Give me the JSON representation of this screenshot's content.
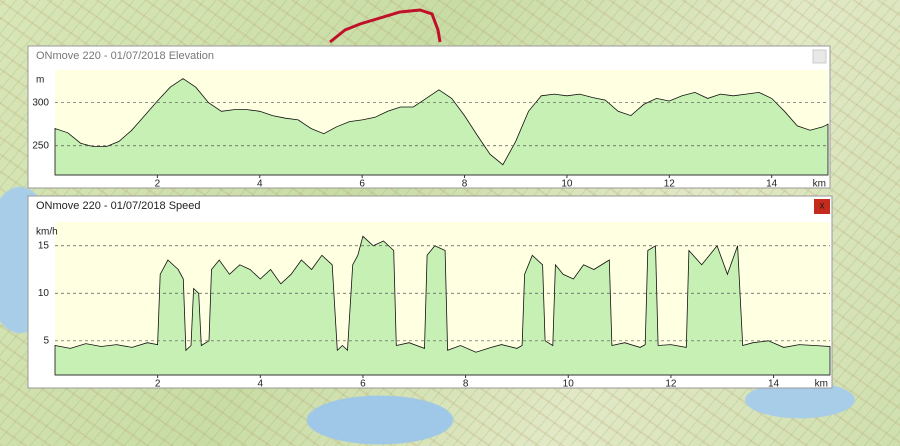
{
  "chart_data": [
    {
      "type": "area",
      "title": "ONmove 220 - 01/07/2018 Elevation",
      "y_label": "m",
      "x_label": "km",
      "x": [
        0,
        0.25,
        0.5,
        0.75,
        1,
        1.25,
        1.5,
        1.75,
        2,
        2.25,
        2.5,
        2.75,
        3,
        3.25,
        3.5,
        3.75,
        4,
        4.25,
        4.5,
        4.75,
        5,
        5.25,
        5.5,
        5.75,
        6,
        6.25,
        6.5,
        6.75,
        7,
        7.25,
        7.5,
        7.75,
        8,
        8.25,
        8.5,
        8.75,
        9,
        9.25,
        9.5,
        9.75,
        10,
        10.25,
        10.5,
        10.75,
        11,
        11.25,
        11.5,
        11.75,
        12,
        12.25,
        12.5,
        12.75,
        13,
        13.25,
        13.5,
        13.75,
        14,
        14.25,
        14.5,
        14.75,
        15,
        15.1
      ],
      "values": [
        270,
        265,
        253,
        249,
        249,
        255,
        268,
        285,
        302,
        318,
        328,
        318,
        300,
        290,
        292,
        292,
        290,
        285,
        282,
        280,
        270,
        264,
        272,
        278,
        280,
        283,
        290,
        295,
        295,
        305,
        315,
        305,
        285,
        262,
        240,
        228,
        255,
        290,
        308,
        310,
        308,
        310,
        306,
        303,
        290,
        285,
        298,
        305,
        302,
        308,
        312,
        305,
        310,
        308,
        310,
        312,
        305,
        290,
        273,
        268,
        272,
        275
      ],
      "color": "#c6f0b4",
      "xlim": [
        0,
        15.1
      ],
      "xticks": [
        2,
        4,
        6,
        8,
        10,
        12,
        14
      ],
      "ylim": [
        216,
        338
      ],
      "yticks": [
        250,
        300
      ],
      "grid": true
    },
    {
      "type": "area",
      "title": "ONmove 220 - 01/07/2018 Speed",
      "y_label": "km/h",
      "x_label": "km",
      "close": "x",
      "x": [
        0,
        0.3,
        0.6,
        0.9,
        1.2,
        1.5,
        1.8,
        2.0,
        2.05,
        2.2,
        2.4,
        2.5,
        2.55,
        2.65,
        2.7,
        2.8,
        2.85,
        3.0,
        3.05,
        3.2,
        3.4,
        3.6,
        3.8,
        4.0,
        4.2,
        4.4,
        4.6,
        4.8,
        5.0,
        5.2,
        5.4,
        5.5,
        5.6,
        5.7,
        5.8,
        5.9,
        6.0,
        6.2,
        6.4,
        6.6,
        6.65,
        6.9,
        7.2,
        7.25,
        7.4,
        7.6,
        7.65,
        7.9,
        8.2,
        8.5,
        8.7,
        9.0,
        9.1,
        9.15,
        9.3,
        9.5,
        9.55,
        9.7,
        9.75,
        9.9,
        10.1,
        10.3,
        10.5,
        10.8,
        10.85,
        11.1,
        11.4,
        11.5,
        11.55,
        11.7,
        11.75,
        12.0,
        12.3,
        12.35,
        12.6,
        12.9,
        13.1,
        13.3,
        13.4,
        13.6,
        13.9,
        14.2,
        14.5,
        14.8,
        15.1
      ],
      "values": [
        4.5,
        4.2,
        4.7,
        4.4,
        4.6,
        4.3,
        4.8,
        4.6,
        12,
        13.5,
        12.5,
        11.5,
        4,
        4.5,
        10.5,
        10,
        4.5,
        5,
        12.5,
        13.5,
        12,
        13,
        12.5,
        11.5,
        12.5,
        11,
        12,
        13.5,
        12.5,
        14,
        13,
        4,
        4.5,
        4,
        13,
        14,
        16,
        15,
        15.5,
        14.5,
        4.5,
        4.8,
        4.2,
        14,
        15,
        14.5,
        4,
        4.5,
        3.8,
        4.3,
        4.6,
        4.2,
        4.5,
        12,
        14,
        13,
        5,
        4.5,
        13,
        12,
        11.5,
        13,
        12.5,
        13.5,
        4.5,
        4.8,
        4.3,
        4.6,
        14.5,
        15,
        4.5,
        4.6,
        4.3,
        14.5,
        13,
        15,
        12,
        15,
        4.5,
        4.8,
        5,
        4.3,
        4.6,
        4.5,
        4.4
      ],
      "color": "#c6f0b4",
      "xlim": [
        0,
        15.1
      ],
      "xticks": [
        2,
        4,
        6,
        8,
        10,
        12,
        14
      ],
      "ylim": [
        1.4,
        17.5
      ],
      "yticks": [
        5,
        10,
        15
      ],
      "grid": true
    }
  ]
}
